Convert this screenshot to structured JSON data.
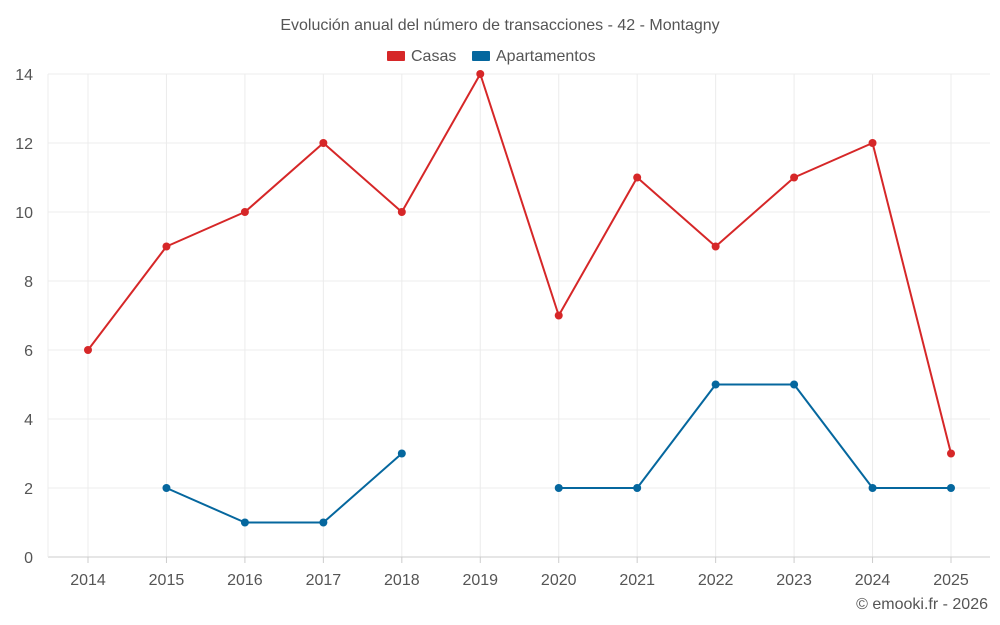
{
  "chart_data": {
    "type": "line",
    "title": "Evolución anual del número de transacciones - 42 - Montagny",
    "categories": [
      "2014",
      "2015",
      "2016",
      "2017",
      "2018",
      "2019",
      "2020",
      "2021",
      "2022",
      "2023",
      "2024",
      "2025"
    ],
    "series": [
      {
        "name": "Casas",
        "color": "#d62728",
        "values": [
          6,
          9,
          10,
          12,
          10,
          14,
          7,
          11,
          9,
          11,
          12,
          3
        ]
      },
      {
        "name": "Apartamentos",
        "color": "#05679e",
        "values": [
          null,
          2,
          1,
          1,
          3,
          null,
          2,
          2,
          5,
          5,
          2,
          2
        ]
      }
    ],
    "ylim": [
      0,
      14
    ],
    "yticks": [
      "0",
      "2",
      "4",
      "6",
      "8",
      "10",
      "12",
      "14"
    ],
    "xlabel": "",
    "ylabel": "",
    "grid": true,
    "legend_position": "top-center"
  },
  "credit": "© emooki.fr - 2026"
}
